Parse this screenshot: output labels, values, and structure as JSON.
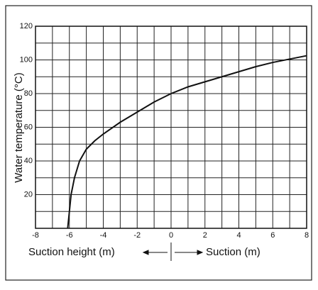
{
  "chart_data": {
    "type": "line",
    "ylabel": "Water temperature (°C)",
    "xlabel_left": "Suction height (m)",
    "xlabel_right": "Suction (m)",
    "x": [
      -6.1,
      -6.0,
      -5.9,
      -5.7,
      -5.4,
      -5.0,
      -4.5,
      -4,
      -3,
      -2,
      -1,
      0,
      1,
      2,
      3,
      4,
      5,
      6,
      7,
      8
    ],
    "series": [
      {
        "color": "#111111",
        "values": [
          0,
          10,
          20,
          30,
          40,
          47,
          52,
          56,
          63,
          69,
          75,
          80,
          84,
          87,
          90,
          93,
          96,
          98.5,
          100.5,
          102.5
        ]
      }
    ],
    "xlim": [
      -8,
      8
    ],
    "xticks": [
      -8,
      -6,
      -4,
      -2,
      0,
      2,
      4,
      6,
      8
    ],
    "ylim": [
      0,
      120
    ],
    "yticks": [
      20,
      40,
      60,
      80,
      100,
      120
    ],
    "grid": true
  }
}
